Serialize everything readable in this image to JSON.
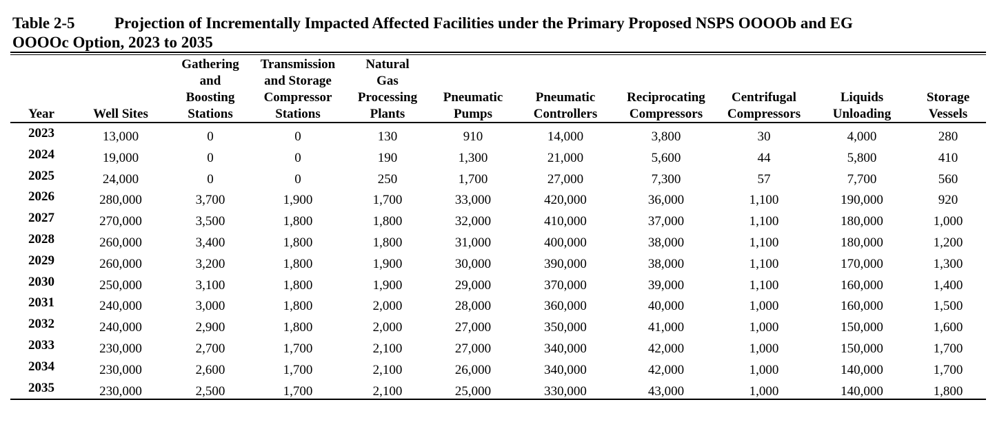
{
  "caption": {
    "label": "Table 2-5",
    "lines": [
      "Projection of Incrementally Impacted Affected Facilities under the Primary Proposed NSPS OOOOb and EG",
      "OOOOc Option, 2023 to 2035"
    ]
  },
  "table": {
    "headers": [
      [
        "Year"
      ],
      [
        "Well Sites"
      ],
      [
        "Gathering",
        "and",
        "Boosting",
        "Stations"
      ],
      [
        "Transmission",
        "and Storage",
        "Compressor",
        "Stations"
      ],
      [
        "Natural",
        "Gas",
        "Processing",
        "Plants"
      ],
      [
        "Pneumatic",
        "Pumps"
      ],
      [
        "Pneumatic",
        "Controllers"
      ],
      [
        "Reciprocating",
        "Compressors"
      ],
      [
        "Centrifugal",
        "Compressors"
      ],
      [
        "Liquids",
        "Unloading"
      ],
      [
        "Storage",
        "Vessels"
      ]
    ],
    "rows": [
      [
        "2023",
        "13,000",
        "0",
        "0",
        "130",
        "910",
        "14,000",
        "3,800",
        "30",
        "4,000",
        "280"
      ],
      [
        "2024",
        "19,000",
        "0",
        "0",
        "190",
        "1,300",
        "21,000",
        "5,600",
        "44",
        "5,800",
        "410"
      ],
      [
        "2025",
        "24,000",
        "0",
        "0",
        "250",
        "1,700",
        "27,000",
        "7,300",
        "57",
        "7,700",
        "560"
      ],
      [
        "2026",
        "280,000",
        "3,700",
        "1,900",
        "1,700",
        "33,000",
        "420,000",
        "36,000",
        "1,100",
        "190,000",
        "920"
      ],
      [
        "2027",
        "270,000",
        "3,500",
        "1,800",
        "1,800",
        "32,000",
        "410,000",
        "37,000",
        "1,100",
        "180,000",
        "1,000"
      ],
      [
        "2028",
        "260,000",
        "3,400",
        "1,800",
        "1,800",
        "31,000",
        "400,000",
        "38,000",
        "1,100",
        "180,000",
        "1,200"
      ],
      [
        "2029",
        "260,000",
        "3,200",
        "1,800",
        "1,900",
        "30,000",
        "390,000",
        "38,000",
        "1,100",
        "170,000",
        "1,300"
      ],
      [
        "2030",
        "250,000",
        "3,100",
        "1,800",
        "1,900",
        "29,000",
        "370,000",
        "39,000",
        "1,100",
        "160,000",
        "1,400"
      ],
      [
        "2031",
        "240,000",
        "3,000",
        "1,800",
        "2,000",
        "28,000",
        "360,000",
        "40,000",
        "1,000",
        "160,000",
        "1,500"
      ],
      [
        "2032",
        "240,000",
        "2,900",
        "1,800",
        "2,000",
        "27,000",
        "350,000",
        "41,000",
        "1,000",
        "150,000",
        "1,600"
      ],
      [
        "2033",
        "230,000",
        "2,700",
        "1,700",
        "2,100",
        "27,000",
        "340,000",
        "42,000",
        "1,000",
        "150,000",
        "1,700"
      ],
      [
        "2034",
        "230,000",
        "2,600",
        "1,700",
        "2,100",
        "26,000",
        "340,000",
        "42,000",
        "1,000",
        "140,000",
        "1,700"
      ],
      [
        "2035",
        "230,000",
        "2,500",
        "1,700",
        "2,100",
        "25,000",
        "330,000",
        "43,000",
        "1,000",
        "140,000",
        "1,800"
      ]
    ]
  }
}
